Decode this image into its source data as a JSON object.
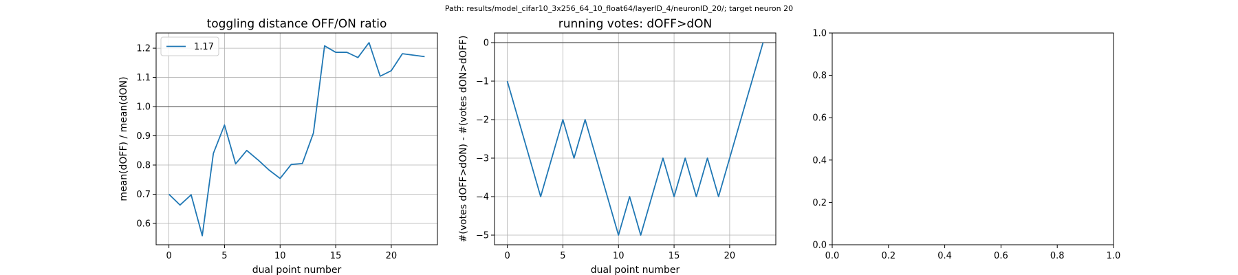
{
  "suptitle": "Path: results/model_cifar10_3x256_64_10_float64/layerID_4/neuronID_20/; target neuron 20",
  "chart_data": [
    {
      "type": "line",
      "title": "toggling distance OFF/ON ratio",
      "xlabel": "dual point number",
      "ylabel": "mean(dOFF) / mean(dON)",
      "xlim": [
        -1.15,
        24.15
      ],
      "ylim": [
        0.527,
        1.252
      ],
      "xticks": [
        0,
        5,
        10,
        15,
        20
      ],
      "yticks": [
        0.6,
        0.7,
        0.8,
        0.9,
        1.0,
        1.1,
        1.2
      ],
      "ytick_labels": [
        "0.6",
        "0.7",
        "0.8",
        "0.9",
        "1.0",
        "1.1",
        "1.2"
      ],
      "grid": true,
      "hline": 1.0,
      "legend": "upper-left",
      "series": [
        {
          "name": "1.17",
          "color": "#1f77b4",
          "x": [
            0,
            1,
            2,
            3,
            4,
            5,
            6,
            7,
            8,
            9,
            10,
            11,
            12,
            13,
            14,
            15,
            16,
            17,
            18,
            19,
            20,
            21,
            22,
            23
          ],
          "y": [
            0.7,
            0.663,
            0.698,
            0.558,
            0.84,
            0.937,
            0.804,
            0.85,
            0.818,
            0.783,
            0.754,
            0.802,
            0.805,
            0.91,
            1.208,
            1.186,
            1.186,
            1.168,
            1.219,
            1.104,
            1.123,
            1.181,
            1.176,
            1.171
          ]
        }
      ]
    },
    {
      "type": "line",
      "title": "running votes: dOFF>dON",
      "xlabel": "dual point number",
      "ylabel": "#(votes dOFF>dON) - #(votes dON>dOFF)",
      "xlim": [
        -1.15,
        24.15
      ],
      "ylim": [
        -5.25,
        0.25
      ],
      "xticks": [
        0,
        5,
        10,
        15,
        20
      ],
      "yticks": [
        0,
        -1,
        -2,
        -3,
        -4,
        -5
      ],
      "ytick_labels": [
        "0",
        "−1",
        "−2",
        "−3",
        "−4",
        "−5"
      ],
      "grid": true,
      "hline": 0,
      "series": [
        {
          "name": "",
          "color": "#1f77b4",
          "x": [
            0,
            3,
            5,
            6,
            7,
            10,
            11,
            12,
            14,
            15,
            16,
            17,
            18,
            19,
            23
          ],
          "y": [
            -1,
            -4,
            -2,
            -3,
            -2,
            -5,
            -4,
            -5,
            -3,
            -4,
            -3,
            -4,
            -3,
            -4,
            0
          ]
        }
      ]
    },
    {
      "type": "line",
      "title": "",
      "xlabel": "",
      "ylabel": "",
      "xlim": [
        0,
        1
      ],
      "ylim": [
        0,
        1
      ],
      "xticks": [
        0.0,
        0.2,
        0.4,
        0.6,
        0.8,
        1.0
      ],
      "yticks": [
        0.0,
        0.2,
        0.4,
        0.6,
        0.8,
        1.0
      ],
      "xtick_labels": [
        "0.0",
        "0.2",
        "0.4",
        "0.6",
        "0.8",
        "1.0"
      ],
      "ytick_labels": [
        "0.0",
        "0.2",
        "0.4",
        "0.6",
        "0.8",
        "1.0"
      ],
      "grid": false,
      "series": []
    }
  ]
}
